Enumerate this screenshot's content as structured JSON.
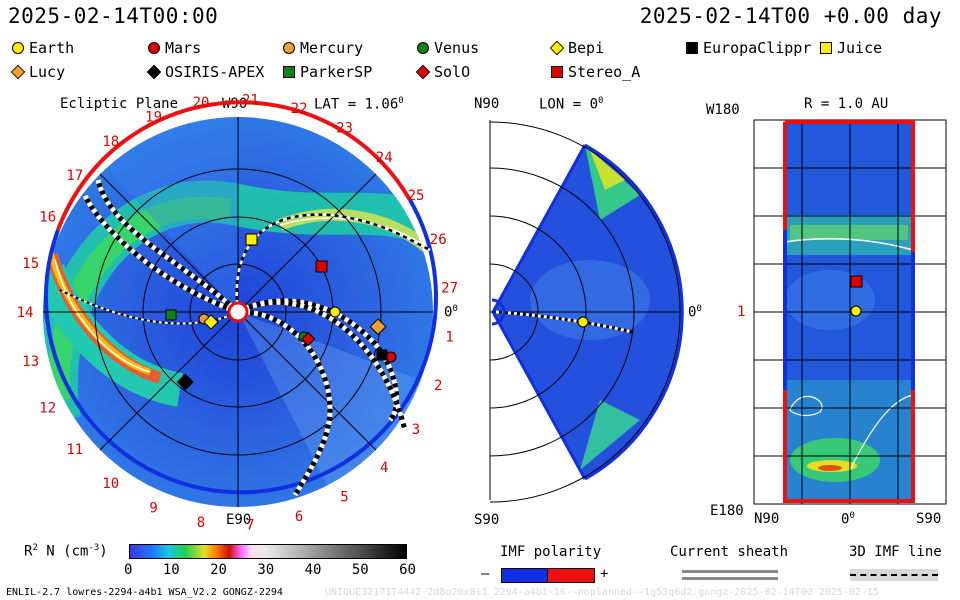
{
  "header": {
    "left_time": "2025-02-14T00:00",
    "right_time": "2025-02-14T00 +0.00 day"
  },
  "legend": [
    {
      "label": "Earth",
      "shape": "circle",
      "color": "#ffee00"
    },
    {
      "label": "Mars",
      "shape": "circle",
      "color": "#dd0000"
    },
    {
      "label": "Mercury",
      "shape": "circle",
      "color": "#f0a030"
    },
    {
      "label": "Venus",
      "shape": "circle",
      "color": "#10801a"
    },
    {
      "label": "Bepi",
      "shape": "diamond",
      "color": "#ffee00"
    },
    {
      "label": "EuropaClippr",
      "shape": "square",
      "color": "#000000"
    },
    {
      "label": "Juice",
      "shape": "square",
      "color": "#ffee00"
    },
    {
      "label": "Lucy",
      "shape": "diamond",
      "color": "#f0a030"
    },
    {
      "label": "OSIRIS-APEX",
      "shape": "diamond",
      "color": "#000000"
    },
    {
      "label": "ParkerSP",
      "shape": "square",
      "color": "#10801a"
    },
    {
      "label": "SolO",
      "shape": "diamond",
      "color": "#dd0000"
    },
    {
      "label": "Stereo_A",
      "shape": "square",
      "color": "#dd0000"
    }
  ],
  "ecliptic": {
    "title": "Ecliptic Plane",
    "w90": "W90",
    "lat_label": "LAT = 1.06",
    "lat_sup": "0",
    "e90": "E90",
    "zero": "0",
    "zero_sup": "0",
    "carrington": [
      "1",
      "2",
      "3",
      "4",
      "5",
      "6",
      "7",
      "8",
      "9",
      "10",
      "11",
      "12",
      "13",
      "14",
      "15",
      "16",
      "17",
      "18",
      "19",
      "20",
      "21",
      "22",
      "23",
      "24",
      "25",
      "26",
      "27"
    ]
  },
  "meridional": {
    "n90": "N90",
    "lon_label": "LON = 0",
    "lon_sup": "0",
    "s90": "S90",
    "zero": "0",
    "zero_sup": "0"
  },
  "radial": {
    "title": "R = 1.0 AU",
    "w180": "W180",
    "one": "1",
    "e180": "E180",
    "n90": "N90",
    "zero": "0",
    "zero_sup": "0",
    "s90": "S90"
  },
  "colorbar": {
    "label_main": "R",
    "label_sup": "2",
    "label_rest": " N (cm",
    "label_exp": "-3",
    "label_end": ")",
    "ticks": [
      "0",
      "10",
      "20",
      "30",
      "40",
      "50",
      "60"
    ]
  },
  "imf": {
    "title": "IMF polarity",
    "minus": "–",
    "plus": "+"
  },
  "sheath": {
    "title": "Current sheath"
  },
  "imf3d": {
    "title": "3D IMF line"
  },
  "footer": {
    "left": "ENLIL-2.7 lowres-2294-a4b1 WSA_V2.2 GONGZ-2294",
    "right": "UNIQUE3217174442_2d8o20x0i1_2294-a4b1-16--noplanned--1g53q6d2.gongz-2025-02-14T00  2025-02-15"
  }
}
